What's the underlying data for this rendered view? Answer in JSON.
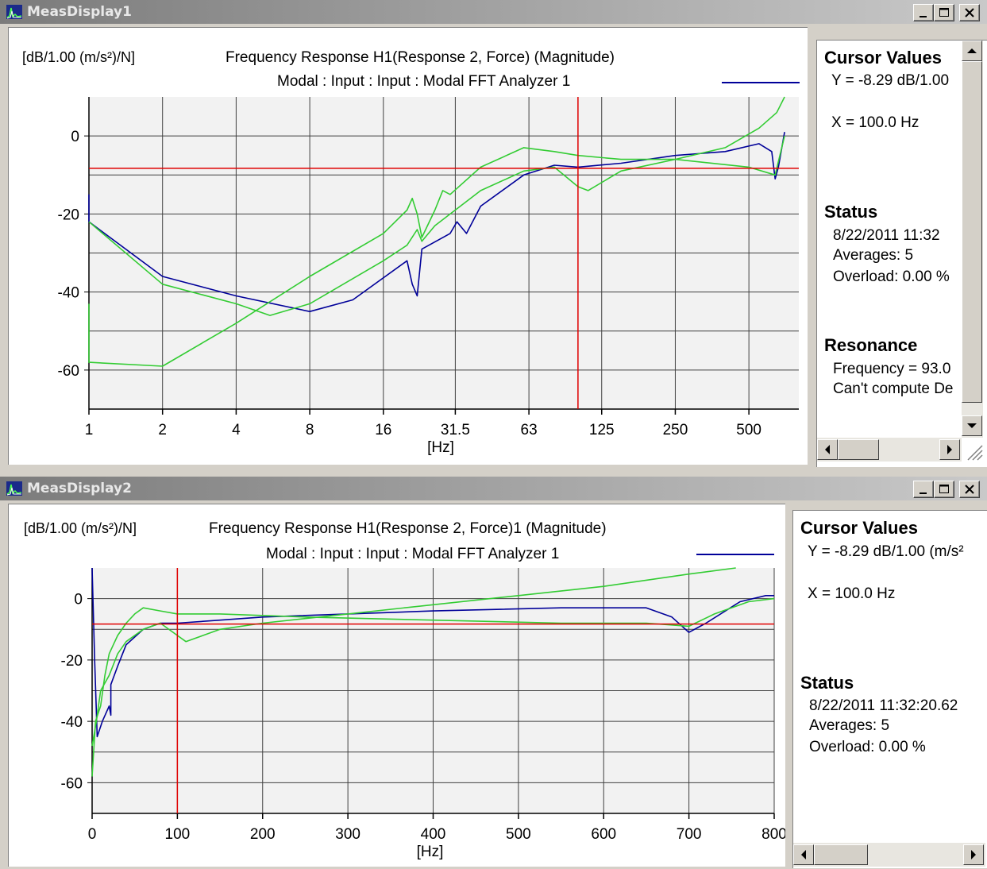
{
  "window1": {
    "title": "MeasDisplay1",
    "ylabel": "[dB/1.00 (m/s²)/N]",
    "title_line1": "Frequency Response H1(Response 2, Force) (Magnitude)",
    "title_line2": "Modal : Input : Input : Modal FFT Analyzer 1",
    "cursor_values": {
      "heading": "Cursor Values",
      "y": "Y = -8.29 dB/1.00",
      "x": "X = 100.0 Hz"
    },
    "status": {
      "heading": "Status",
      "timestamp": "8/22/2011  11:32",
      "averages": "Averages: 5",
      "overload": "Overload:   0.00 %"
    },
    "resonance": {
      "heading": "Resonance",
      "frequency": "Frequency = 93.0",
      "damping": "Can't compute De"
    }
  },
  "window2": {
    "title": "MeasDisplay2",
    "ylabel": "[dB/1.00 (m/s²)/N]",
    "title_line1": "Frequency Response H1(Response 2, Force)1 (Magnitude)",
    "title_line2": "Modal : Input : Input : Modal FFT Analyzer 1",
    "cursor_values": {
      "heading": "Cursor Values",
      "y": "Y = -8.29 dB/1.00 (m/s²",
      "x": "X = 100.0 Hz"
    },
    "status": {
      "heading": "Status",
      "timestamp": "8/22/2011  11:32:20.62",
      "averages": "Averages: 5",
      "overload": "Overload:   0.00 %"
    }
  },
  "colors": {
    "blue_trace": "#000099",
    "green_trace": "#33cc33",
    "cursor": "#e00000",
    "grid": "#404040",
    "plot_bg": "#f2f2f2"
  },
  "chart_data": [
    {
      "type": "line",
      "xscale": "log",
      "xunit": "[Hz]",
      "xticks": [
        1,
        2,
        4,
        8,
        16,
        31.5,
        63,
        125,
        250,
        500
      ],
      "xtick_labels": [
        "1",
        "2",
        "4",
        "8",
        "16",
        "31.5",
        "63",
        "125",
        "250",
        "500"
      ],
      "xlim": [
        1,
        800
      ],
      "yticks": [
        0,
        -20,
        -40,
        -60
      ],
      "ytick_labels": [
        "0",
        "-20",
        "-40",
        "-60"
      ],
      "ylim": [
        -70,
        10
      ],
      "grid": true,
      "cursor": {
        "x": 100,
        "y": -8.29
      },
      "series": [
        {
          "color": "blue",
          "points": [
            [
              1,
              -15
            ],
            [
              1,
              -22
            ],
            [
              2,
              -36
            ],
            [
              4,
              -41
            ],
            [
              8,
              -45
            ],
            [
              12,
              -42
            ],
            [
              20,
              -32
            ],
            [
              21,
              -38
            ],
            [
              22,
              -41
            ],
            [
              23,
              -29
            ],
            [
              30,
              -25
            ],
            [
              32,
              -22
            ],
            [
              35,
              -25
            ],
            [
              40,
              -18
            ],
            [
              60,
              -10
            ],
            [
              80,
              -7.5
            ],
            [
              100,
              -8
            ],
            [
              150,
              -7
            ],
            [
              250,
              -5
            ],
            [
              400,
              -4
            ],
            [
              550,
              -2
            ],
            [
              620,
              -4
            ],
            [
              640,
              -11
            ],
            [
              660,
              -8
            ],
            [
              700,
              1
            ]
          ]
        },
        {
          "color": "green",
          "points": [
            [
              1,
              -43
            ],
            [
              1,
              -58
            ],
            [
              2,
              -59
            ],
            [
              4,
              -48
            ],
            [
              8,
              -36
            ],
            [
              16,
              -25
            ],
            [
              20,
              -19
            ],
            [
              21,
              -16
            ],
            [
              22,
              -20
            ],
            [
              23,
              -26
            ],
            [
              26,
              -19
            ],
            [
              28,
              -14
            ],
            [
              30,
              -15
            ],
            [
              40,
              -8
            ],
            [
              60,
              -3
            ],
            [
              80,
              -4
            ],
            [
              100,
              -5
            ],
            [
              150,
              -6
            ],
            [
              250,
              -6
            ],
            [
              500,
              -8
            ],
            [
              640,
              -10
            ],
            [
              700,
              0
            ]
          ]
        },
        {
          "color": "green",
          "points": [
            [
              1,
              -22
            ],
            [
              2,
              -38
            ],
            [
              4,
              -43
            ],
            [
              5.5,
              -46
            ],
            [
              8,
              -43
            ],
            [
              16,
              -32
            ],
            [
              20,
              -28
            ],
            [
              22,
              -24
            ],
            [
              23,
              -27
            ],
            [
              26,
              -23
            ],
            [
              30,
              -20
            ],
            [
              40,
              -14
            ],
            [
              60,
              -9
            ],
            [
              80,
              -8
            ],
            [
              100,
              -13
            ],
            [
              110,
              -14
            ],
            [
              150,
              -9
            ],
            [
              250,
              -6
            ],
            [
              400,
              -3
            ],
            [
              550,
              2
            ],
            [
              650,
              6
            ],
            [
              700,
              10
            ]
          ]
        }
      ]
    },
    {
      "type": "line",
      "xscale": "linear",
      "xunit": "[Hz]",
      "xticks": [
        0,
        100,
        200,
        300,
        400,
        500,
        600,
        700,
        800
      ],
      "xtick_labels": [
        "0",
        "100",
        "200",
        "300",
        "400",
        "500",
        "600",
        "700",
        "800"
      ],
      "xlim": [
        0,
        800
      ],
      "yticks": [
        0,
        -20,
        -40,
        -60
      ],
      "ytick_labels": [
        "0",
        "-20",
        "-40",
        "-60"
      ],
      "ylim": [
        -70,
        10
      ],
      "grid": true,
      "cursor": {
        "x": 100,
        "y": -8.29
      },
      "series": [
        {
          "color": "blue",
          "points": [
            [
              0,
              10
            ],
            [
              3,
              -20
            ],
            [
              6,
              -45
            ],
            [
              12,
              -40
            ],
            [
              20,
              -35
            ],
            [
              22,
              -38
            ],
            [
              22,
              -28
            ],
            [
              30,
              -22
            ],
            [
              40,
              -15
            ],
            [
              60,
              -10
            ],
            [
              80,
              -8
            ],
            [
              100,
              -8
            ],
            [
              150,
              -7
            ],
            [
              200,
              -6
            ],
            [
              300,
              -5
            ],
            [
              400,
              -4
            ],
            [
              550,
              -3
            ],
            [
              620,
              -3
            ],
            [
              650,
              -3
            ],
            [
              680,
              -6
            ],
            [
              700,
              -11
            ],
            [
              720,
              -8
            ],
            [
              760,
              -1
            ],
            [
              790,
              1
            ],
            [
              800,
              1
            ]
          ]
        },
        {
          "color": "green",
          "points": [
            [
              0,
              -58
            ],
            [
              4,
              -40
            ],
            [
              10,
              -35
            ],
            [
              15,
              -25
            ],
            [
              20,
              -18
            ],
            [
              25,
              -15
            ],
            [
              30,
              -12
            ],
            [
              40,
              -8
            ],
            [
              50,
              -5
            ],
            [
              60,
              -3
            ],
            [
              80,
              -4
            ],
            [
              100,
              -5
            ],
            [
              150,
              -5
            ],
            [
              250,
              -6
            ],
            [
              400,
              -7
            ],
            [
              550,
              -8
            ],
            [
              650,
              -8
            ],
            [
              700,
              -9
            ],
            [
              730,
              -5
            ],
            [
              770,
              -1
            ],
            [
              800,
              0
            ]
          ]
        },
        {
          "color": "green",
          "points": [
            [
              0,
              -48
            ],
            [
              5,
              -40
            ],
            [
              10,
              -30
            ],
            [
              20,
              -25
            ],
            [
              30,
              -18
            ],
            [
              40,
              -14
            ],
            [
              60,
              -10
            ],
            [
              80,
              -8
            ],
            [
              100,
              -12
            ],
            [
              110,
              -14
            ],
            [
              130,
              -12
            ],
            [
              150,
              -10
            ],
            [
              200,
              -8
            ],
            [
              300,
              -5
            ],
            [
              400,
              -2
            ],
            [
              500,
              1
            ],
            [
              600,
              4
            ],
            [
              700,
              8
            ],
            [
              755,
              10
            ]
          ]
        }
      ]
    }
  ]
}
